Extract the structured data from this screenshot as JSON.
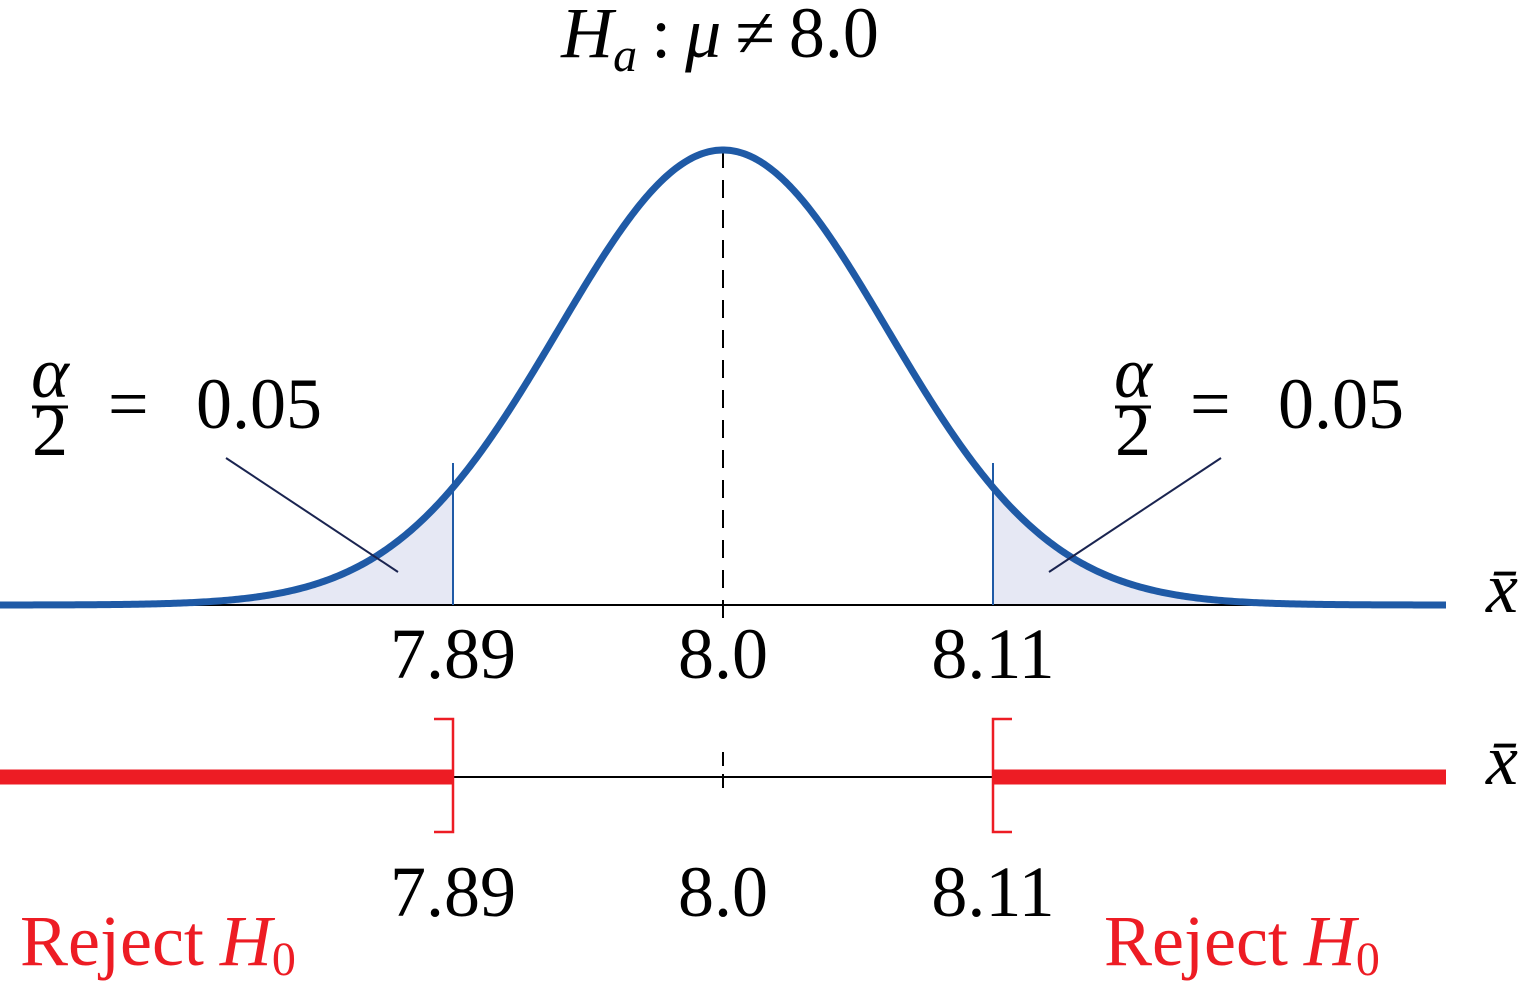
{
  "hypothesis": {
    "symbol": "H",
    "subscript": "a",
    "colon": ":",
    "mu": "μ",
    "neq": "≠",
    "value": "8.0"
  },
  "tails": {
    "left": {
      "numerator": "α",
      "denominator": "2",
      "equals": "=",
      "value": "0.05"
    },
    "right": {
      "numerator": "α",
      "denominator": "2",
      "equals": "=",
      "value": "0.05"
    }
  },
  "curve": {
    "mean": 8.0,
    "lower_critical": 7.89,
    "upper_critical": 8.11
  },
  "axis_top": {
    "variable": "x̄",
    "ticks": [
      "7.89",
      "8.0",
      "8.11"
    ]
  },
  "axis_bottom": {
    "variable": "x̄",
    "ticks": [
      "7.89",
      "8.0",
      "8.11"
    ]
  },
  "reject": {
    "left": {
      "text": "Reject",
      "symbol": "H",
      "subscript": "0"
    },
    "right": {
      "text": "Reject",
      "symbol": "H",
      "subscript": "0"
    }
  },
  "colors": {
    "curve": "#1f5aa6",
    "shade": "#e6e8f4",
    "reject": "#ed1c24",
    "axis": "#000000",
    "leader": "#1a2450"
  }
}
